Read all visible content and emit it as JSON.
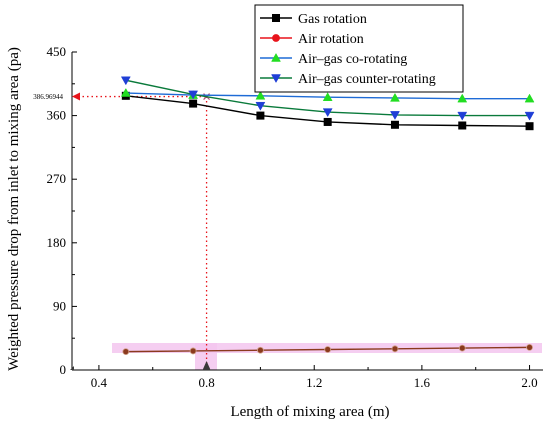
{
  "chart_data": {
    "type": "line",
    "title": "",
    "xlabel": "Length of mixing area (m)",
    "ylabel": "Weighted pressure drop from inlet to mixing area (pa)",
    "xlim": [
      0.3,
      2.05
    ],
    "ylim": [
      0,
      450
    ],
    "xticks": [
      0.4,
      0.8,
      1.2,
      1.6,
      2.0
    ],
    "xtick_labels": [
      "0.4",
      "0.8",
      "1.2",
      "1.6",
      "2.0"
    ],
    "yticks": [
      0,
      90,
      180,
      270,
      360,
      450
    ],
    "ytick_labels": [
      "0",
      "90",
      "180",
      "270",
      "360",
      "450"
    ],
    "grid": false,
    "legend_position": "top-right",
    "x": [
      0.5,
      0.75,
      1.0,
      1.25,
      1.5,
      1.75,
      2.0
    ],
    "series": [
      {
        "name": "Gas rotation",
        "color": "#000000",
        "marker": "square",
        "values": [
          388,
          377,
          360,
          351,
          347,
          346,
          345
        ]
      },
      {
        "name": "Air rotation",
        "color": "#e8141b",
        "marker": "circle",
        "values": [
          26,
          27,
          28,
          29,
          30,
          31,
          32
        ]
      },
      {
        "name": "Air–gas co-rotating",
        "color": "#0a7a3b",
        "line_color": "#1e6bd6",
        "marker": "triangle-up",
        "marker_color": "#22dd22",
        "values": [
          392,
          389,
          388,
          386,
          385,
          384,
          384
        ]
      },
      {
        "name": "Air–gas counter-rotating",
        "color": "#0a7a3b",
        "marker": "triangle-down",
        "marker_color": "#1f3fd6",
        "values": [
          410,
          390,
          374,
          365,
          361,
          360,
          360
        ]
      }
    ],
    "annotation": {
      "label": "386.96944",
      "x": 0.8,
      "y": 386.96944
    }
  }
}
